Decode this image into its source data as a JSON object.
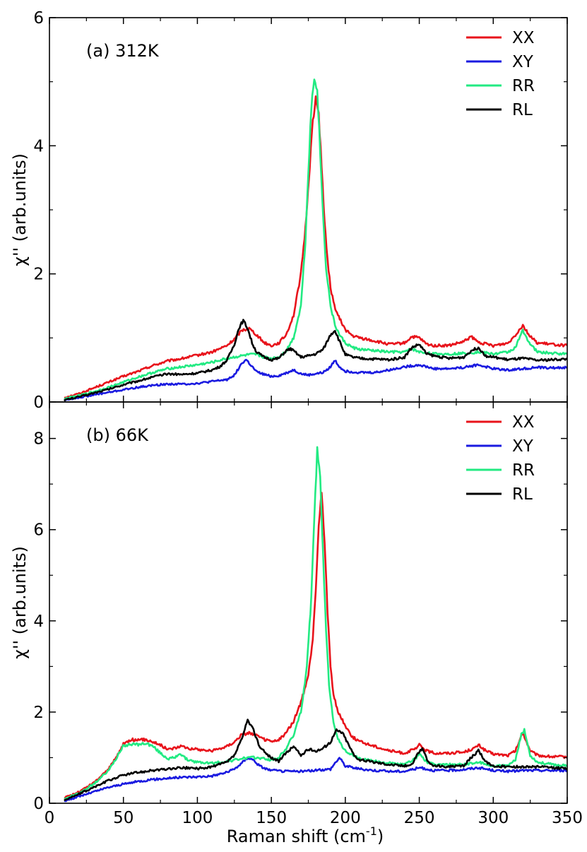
{
  "figure": {
    "xlabel_main": "Raman shift (cm",
    "xlabel_sup": "-1",
    "xlabel_end": ")"
  },
  "chart_data": [
    {
      "type": "line",
      "panel_label": "(a) 312K",
      "ylabel": "χ'' (arb.units)",
      "xlim": [
        0,
        350
      ],
      "ylim": [
        0,
        6
      ],
      "x_ticks": [
        0,
        50,
        100,
        150,
        200,
        250,
        300,
        350
      ],
      "y_ticks": [
        0,
        2,
        4,
        6
      ],
      "legend_position": "top-right",
      "series": [
        {
          "name": "XX",
          "color": "#e8131b",
          "x": [
            10,
            20,
            30,
            40,
            50,
            60,
            70,
            80,
            90,
            100,
            110,
            120,
            125,
            130,
            135,
            140,
            145,
            150,
            155,
            160,
            165,
            170,
            173,
            176,
            178,
            180,
            182,
            184,
            186,
            188,
            190,
            192,
            195,
            200,
            205,
            210,
            220,
            230,
            240,
            245,
            250,
            255,
            260,
            270,
            280,
            285,
            290,
            300,
            310,
            315,
            320,
            325,
            330,
            340,
            350
          ],
          "y": [
            0.07,
            0.13,
            0.22,
            0.31,
            0.4,
            0.48,
            0.57,
            0.64,
            0.68,
            0.73,
            0.78,
            0.88,
            0.98,
            1.12,
            1.15,
            1.05,
            0.93,
            0.88,
            0.92,
            1.05,
            1.35,
            2.0,
            2.7,
            3.7,
            4.4,
            4.72,
            4.5,
            3.7,
            2.8,
            2.2,
            1.8,
            1.55,
            1.35,
            1.13,
            1.03,
            1.0,
            0.95,
            0.9,
            0.92,
            1.02,
            1.0,
            0.9,
            0.88,
            0.88,
            0.94,
            1.02,
            0.93,
            0.88,
            0.92,
            1.05,
            1.2,
            1.02,
            0.92,
            0.9,
            0.88
          ]
        },
        {
          "name": "XY",
          "color": "#1a1ae0",
          "x": [
            10,
            20,
            30,
            40,
            50,
            60,
            70,
            80,
            90,
            100,
            110,
            120,
            125,
            130,
            133,
            137,
            140,
            145,
            150,
            155,
            160,
            165,
            170,
            175,
            180,
            185,
            190,
            193,
            196,
            200,
            210,
            220,
            230,
            240,
            250,
            260,
            270,
            280,
            290,
            300,
            310,
            320,
            330,
            340,
            350
          ],
          "y": [
            0.03,
            0.07,
            0.11,
            0.15,
            0.19,
            0.23,
            0.26,
            0.28,
            0.28,
            0.29,
            0.32,
            0.35,
            0.42,
            0.6,
            0.66,
            0.55,
            0.47,
            0.43,
            0.4,
            0.41,
            0.45,
            0.5,
            0.44,
            0.42,
            0.44,
            0.46,
            0.55,
            0.65,
            0.55,
            0.48,
            0.46,
            0.46,
            0.5,
            0.55,
            0.58,
            0.52,
            0.52,
            0.54,
            0.58,
            0.52,
            0.5,
            0.52,
            0.54,
            0.53,
            0.54
          ]
        },
        {
          "name": "RR",
          "color": "#22ea82",
          "x": [
            10,
            20,
            30,
            40,
            50,
            60,
            70,
            80,
            90,
            100,
            110,
            120,
            125,
            130,
            135,
            140,
            145,
            150,
            155,
            160,
            165,
            170,
            173,
            175,
            177,
            179,
            181,
            183,
            185,
            187,
            190,
            193,
            196,
            200,
            205,
            210,
            220,
            230,
            240,
            245,
            250,
            260,
            270,
            280,
            290,
            300,
            310,
            315,
            320,
            325,
            330,
            340,
            350
          ],
          "y": [
            0.05,
            0.1,
            0.16,
            0.23,
            0.31,
            0.39,
            0.46,
            0.52,
            0.55,
            0.58,
            0.62,
            0.68,
            0.7,
            0.72,
            0.74,
            0.74,
            0.7,
            0.68,
            0.7,
            0.8,
            1.0,
            1.5,
            2.5,
            3.6,
            4.6,
            5.05,
            4.9,
            3.9,
            2.9,
            2.1,
            1.5,
            1.2,
            1.05,
            0.92,
            0.85,
            0.82,
            0.8,
            0.78,
            0.78,
            0.83,
            0.78,
            0.75,
            0.75,
            0.76,
            0.78,
            0.75,
            0.78,
            0.85,
            1.12,
            0.9,
            0.78,
            0.76,
            0.75
          ]
        },
        {
          "name": "RL",
          "color": "#000000",
          "x": [
            10,
            20,
            30,
            40,
            50,
            60,
            70,
            80,
            90,
            100,
            110,
            115,
            120,
            125,
            128,
            131,
            134,
            137,
            140,
            145,
            150,
            155,
            160,
            163,
            166,
            170,
            175,
            180,
            185,
            190,
            193,
            196,
            200,
            205,
            210,
            220,
            230,
            240,
            245,
            250,
            255,
            260,
            270,
            280,
            285,
            290,
            295,
            300,
            310,
            320,
            330,
            340,
            350
          ],
          "y": [
            0.03,
            0.08,
            0.14,
            0.2,
            0.27,
            0.33,
            0.39,
            0.44,
            0.43,
            0.45,
            0.5,
            0.55,
            0.65,
            0.9,
            1.15,
            1.27,
            1.15,
            0.92,
            0.78,
            0.7,
            0.66,
            0.68,
            0.8,
            0.83,
            0.78,
            0.7,
            0.72,
            0.75,
            0.82,
            1.05,
            1.12,
            0.95,
            0.74,
            0.7,
            0.68,
            0.67,
            0.66,
            0.7,
            0.85,
            0.9,
            0.75,
            0.72,
            0.68,
            0.7,
            0.8,
            0.85,
            0.72,
            0.7,
            0.66,
            0.68,
            0.65,
            0.66,
            0.67
          ]
        }
      ]
    },
    {
      "type": "line",
      "panel_label": "(b) 66K",
      "ylabel": "χ'' (arb.units)",
      "xlabel": "Raman shift (cm-1)",
      "xlim": [
        0,
        350
      ],
      "ylim": [
        0,
        8.8
      ],
      "x_ticks": [
        0,
        50,
        100,
        150,
        200,
        250,
        300,
        350
      ],
      "y_ticks": [
        0,
        2,
        4,
        6,
        8
      ],
      "legend_position": "top-right",
      "series": [
        {
          "name": "XX",
          "color": "#e8131b",
          "x": [
            10,
            20,
            30,
            40,
            45,
            50,
            55,
            60,
            65,
            70,
            75,
            80,
            85,
            90,
            95,
            100,
            110,
            120,
            125,
            130,
            135,
            140,
            145,
            150,
            155,
            160,
            165,
            170,
            175,
            178,
            180,
            182,
            184,
            186,
            188,
            190,
            192,
            195,
            200,
            205,
            210,
            220,
            230,
            240,
            248,
            250,
            255,
            260,
            270,
            280,
            288,
            290,
            295,
            300,
            310,
            315,
            320,
            325,
            330,
            340,
            350
          ],
          "y": [
            0.12,
            0.25,
            0.45,
            0.75,
            1.0,
            1.3,
            1.4,
            1.38,
            1.4,
            1.35,
            1.28,
            1.18,
            1.22,
            1.25,
            1.2,
            1.18,
            1.15,
            1.25,
            1.35,
            1.5,
            1.55,
            1.48,
            1.4,
            1.35,
            1.38,
            1.55,
            1.8,
            2.2,
            2.8,
            3.6,
            4.7,
            6.1,
            6.8,
            5.8,
            4.2,
            3.0,
            2.4,
            2.0,
            1.7,
            1.45,
            1.35,
            1.25,
            1.15,
            1.1,
            1.2,
            1.28,
            1.15,
            1.1,
            1.1,
            1.12,
            1.22,
            1.28,
            1.15,
            1.08,
            1.05,
            1.15,
            1.55,
            1.15,
            1.05,
            1.02,
            1.02
          ]
        },
        {
          "name": "XY",
          "color": "#1a1ae0",
          "x": [
            10,
            20,
            30,
            40,
            50,
            60,
            70,
            80,
            90,
            100,
            110,
            120,
            125,
            130,
            134,
            138,
            142,
            146,
            150,
            160,
            170,
            180,
            190,
            193,
            196,
            200,
            210,
            220,
            230,
            240,
            250,
            260,
            270,
            280,
            290,
            300,
            310,
            320,
            330,
            340,
            350
          ],
          "y": [
            0.05,
            0.15,
            0.25,
            0.35,
            0.42,
            0.48,
            0.52,
            0.55,
            0.57,
            0.58,
            0.6,
            0.68,
            0.75,
            0.88,
            1.0,
            0.95,
            0.82,
            0.76,
            0.72,
            0.7,
            0.7,
            0.72,
            0.75,
            0.88,
            1.0,
            0.82,
            0.75,
            0.72,
            0.7,
            0.7,
            0.78,
            0.72,
            0.72,
            0.74,
            0.78,
            0.72,
            0.7,
            0.72,
            0.72,
            0.72,
            0.72
          ]
        },
        {
          "name": "RR",
          "color": "#22ea82",
          "x": [
            10,
            20,
            30,
            40,
            45,
            50,
            55,
            60,
            65,
            70,
            75,
            80,
            85,
            88,
            92,
            96,
            100,
            110,
            120,
            125,
            130,
            135,
            140,
            145,
            150,
            155,
            160,
            165,
            170,
            174,
            177,
            179,
            181,
            183,
            185,
            187,
            189,
            192,
            195,
            200,
            205,
            210,
            220,
            230,
            240,
            248,
            250,
            255,
            260,
            270,
            280,
            290,
            295,
            300,
            310,
            315,
            319,
            321,
            325,
            330,
            340,
            350
          ],
          "y": [
            0.1,
            0.22,
            0.42,
            0.72,
            0.98,
            1.25,
            1.3,
            1.28,
            1.32,
            1.25,
            1.1,
            0.98,
            1.0,
            1.1,
            0.98,
            0.92,
            0.9,
            0.88,
            0.92,
            0.95,
            0.98,
            1.0,
            1.0,
            0.98,
            0.95,
            1.0,
            1.2,
            1.5,
            2.0,
            3.0,
            4.5,
            6.2,
            7.8,
            7.1,
            5.4,
            3.8,
            2.6,
            1.8,
            1.4,
            1.15,
            1.05,
            0.98,
            0.92,
            0.88,
            0.85,
            1.0,
            1.1,
            0.9,
            0.85,
            0.85,
            0.85,
            0.9,
            0.85,
            0.82,
            0.82,
            0.95,
            1.5,
            1.6,
            1.05,
            0.9,
            0.85,
            0.82
          ]
        },
        {
          "name": "RL",
          "color": "#000000",
          "x": [
            10,
            20,
            30,
            40,
            50,
            60,
            70,
            80,
            90,
            100,
            110,
            120,
            125,
            130,
            134,
            138,
            142,
            146,
            150,
            155,
            160,
            165,
            170,
            175,
            180,
            185,
            190,
            194,
            198,
            202,
            206,
            210,
            220,
            230,
            240,
            245,
            249,
            252,
            256,
            260,
            270,
            280,
            285,
            290,
            295,
            300,
            310,
            320,
            330,
            340,
            350
          ],
          "y": [
            0.07,
            0.2,
            0.35,
            0.5,
            0.62,
            0.68,
            0.72,
            0.75,
            0.78,
            0.76,
            0.8,
            0.9,
            1.05,
            1.4,
            1.82,
            1.6,
            1.25,
            1.1,
            1.0,
            0.92,
            1.1,
            1.25,
            1.05,
            1.18,
            1.15,
            1.2,
            1.35,
            1.6,
            1.55,
            1.3,
            1.05,
            0.95,
            0.9,
            0.85,
            0.82,
            0.85,
            1.1,
            1.2,
            0.9,
            0.82,
            0.8,
            0.82,
            1.0,
            1.15,
            0.9,
            0.82,
            0.8,
            0.8,
            0.8,
            0.78,
            0.76
          ]
        }
      ]
    }
  ]
}
